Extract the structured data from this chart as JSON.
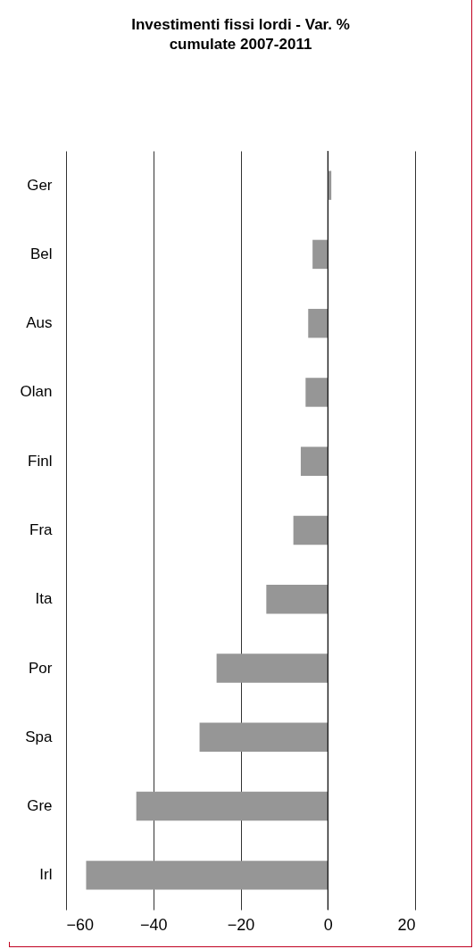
{
  "chart_data": {
    "type": "bar",
    "orientation": "horizontal",
    "title": "Investimenti fissi lordi - Var. % cumulate 2007-2011",
    "categories": [
      "Ger",
      "Bel",
      "Aus",
      "Olan",
      "Finl",
      "Fra",
      "Ita",
      "Por",
      "Spa",
      "Gre",
      "Irl"
    ],
    "values": [
      0.8,
      -3.5,
      -4.5,
      -5.1,
      -6.2,
      -7.9,
      -14.1,
      -25.5,
      -29.4,
      -43.9,
      -55.4
    ],
    "color": "#969696",
    "xlim": [
      -60,
      20
    ],
    "xticks": [
      -60,
      -40,
      -20,
      0,
      20
    ],
    "grid": "x"
  }
}
